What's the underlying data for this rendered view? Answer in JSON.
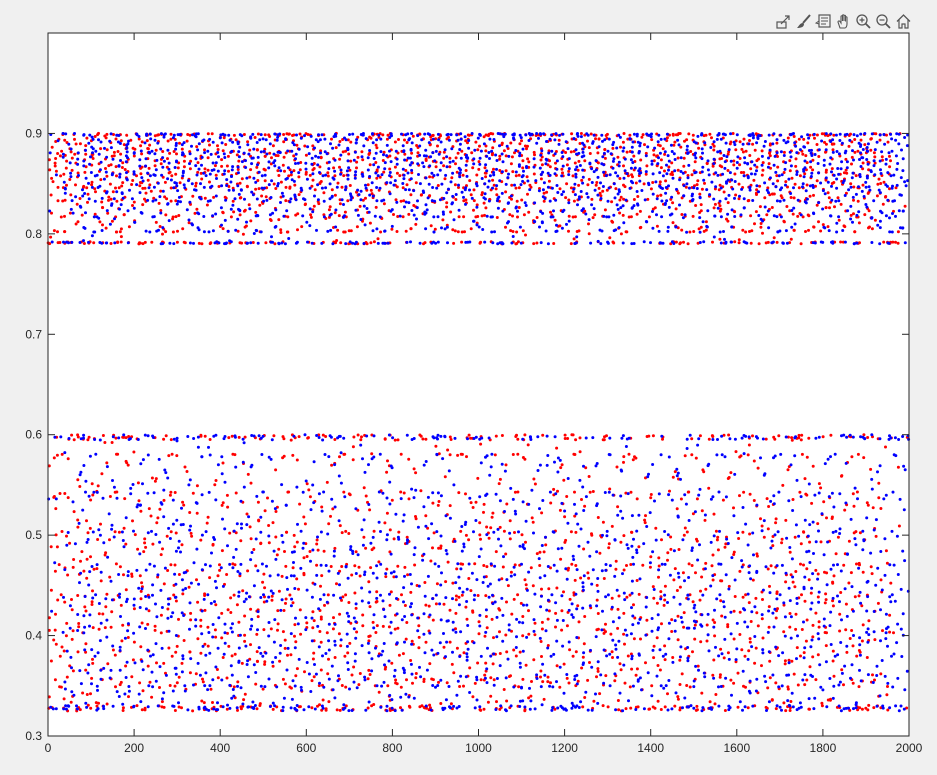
{
  "toolbar": {
    "buttons": [
      {
        "name": "export-icon"
      },
      {
        "name": "brush-icon"
      },
      {
        "name": "datatip-icon"
      },
      {
        "name": "pan-hand-icon"
      },
      {
        "name": "zoom-in-icon"
      },
      {
        "name": "zoom-out-icon"
      },
      {
        "name": "home-icon"
      }
    ]
  },
  "chart_data": {
    "type": "scatter",
    "title": "",
    "xlabel": "",
    "ylabel": "",
    "xlim": [
      0,
      2000
    ],
    "ylim": [
      0.3,
      1.0
    ],
    "xticks": [
      "0",
      "200",
      "400",
      "600",
      "800",
      "1000",
      "1200",
      "1400",
      "1600",
      "1800",
      "2000"
    ],
    "yticks": [
      "0.3",
      "0.4",
      "0.5",
      "0.6",
      "0.7",
      "0.8",
      "0.9"
    ],
    "grid": false,
    "legend": "none",
    "series": [
      {
        "color": "#ff0000",
        "marker": "dot",
        "bands": [
          {
            "y_min": 0.79,
            "y_max": 0.9,
            "y_center": 0.87,
            "x_min": 0,
            "x_max": 2000
          },
          {
            "y_min": 0.325,
            "y_max": 0.6,
            "y_center": 0.41,
            "x_min": 0,
            "x_max": 2000
          }
        ],
        "cluster_centers_x": [
          30,
          160,
          290,
          430,
          560,
          690,
          820,
          960,
          1090,
          1220,
          1350,
          1490,
          1620,
          1750,
          1880
        ]
      },
      {
        "color": "#0000ff",
        "marker": "dot",
        "bands": [
          {
            "y_min": 0.79,
            "y_max": 0.9,
            "y_center": 0.87,
            "x_min": 0,
            "x_max": 2000
          },
          {
            "y_min": 0.325,
            "y_max": 0.6,
            "y_center": 0.41,
            "x_min": 0,
            "x_max": 2000
          }
        ],
        "cluster_centers_x": [
          110,
          240,
          370,
          500,
          640,
          770,
          900,
          1030,
          1170,
          1300,
          1430,
          1560,
          1700,
          1830,
          1960
        ]
      }
    ]
  }
}
